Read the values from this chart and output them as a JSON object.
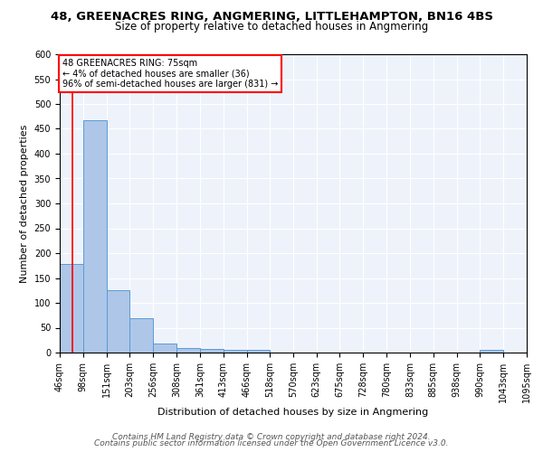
{
  "title1": "48, GREENACRES RING, ANGMERING, LITTLEHAMPTON, BN16 4BS",
  "title2": "Size of property relative to detached houses in Angmering",
  "xlabel": "Distribution of detached houses by size in Angmering",
  "ylabel": "Number of detached properties",
  "footer1": "Contains HM Land Registry data © Crown copyright and database right 2024.",
  "footer2": "Contains public sector information licensed under the Open Government Licence v3.0.",
  "annotation_line1": "48 GREENACRES RING: 75sqm",
  "annotation_line2": "← 4% of detached houses are smaller (36)",
  "annotation_line3": "96% of semi-detached houses are larger (831) →",
  "bin_edges": [
    46,
    98,
    151,
    203,
    256,
    308,
    361,
    413,
    466,
    518,
    570,
    623,
    675,
    728,
    780,
    833,
    885,
    938,
    990,
    1043,
    1095
  ],
  "bin_counts": [
    178,
    468,
    125,
    70,
    18,
    10,
    7,
    5,
    6,
    0,
    0,
    0,
    0,
    0,
    0,
    0,
    0,
    0,
    5,
    0,
    0
  ],
  "bar_color": "#aec6e8",
  "bar_edge_color": "#5a9bd5",
  "red_line_x": 75,
  "ylim": [
    0,
    600
  ],
  "yticks": [
    0,
    50,
    100,
    150,
    200,
    250,
    300,
    350,
    400,
    450,
    500,
    550,
    600
  ],
  "background_color": "#eef3fb",
  "red_line_color": "red",
  "title1_fontsize": 9.5,
  "title2_fontsize": 8.5,
  "xlabel_fontsize": 8,
  "ylabel_fontsize": 8,
  "tick_fontsize": 7,
  "annotation_fontsize": 7,
  "footer_fontsize": 6.5
}
